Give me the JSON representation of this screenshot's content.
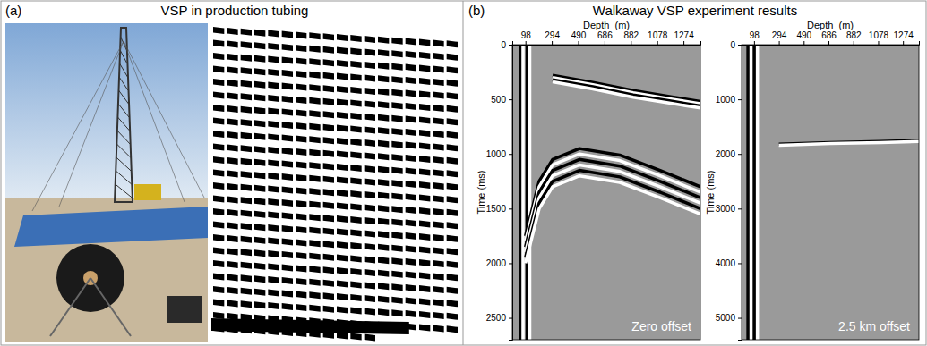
{
  "panels": [
    {
      "letter": "(a)",
      "title": "VSP in production tubing"
    },
    {
      "letter": "(b)",
      "title": "Walkaway VSP experiment results"
    }
  ],
  "chart_data": [
    {
      "type": "line",
      "title": "Zero offset",
      "x_label": "Depth  (m)",
      "y_label": "Time (ms)",
      "xlim": [
        0,
        1400
      ],
      "xticks": [
        98,
        294,
        490,
        686,
        882,
        1078,
        1274
      ],
      "ylim": [
        0,
        2700
      ],
      "yticks": [
        0,
        500,
        1000,
        1500,
        2000,
        2500
      ],
      "series": [
        {
          "color": "#000000",
          "x": [
            60,
            60
          ],
          "values": [
            0,
            2700
          ]
        },
        {
          "color": "#ffffff",
          "x": [
            80,
            80
          ],
          "values": [
            0,
            2700
          ]
        },
        {
          "color": "#000000",
          "x": [
            110,
            110
          ],
          "values": [
            0,
            2700
          ]
        },
        {
          "color": "#ffffff",
          "x": [
            130,
            130
          ],
          "values": [
            0,
            2700
          ]
        },
        {
          "color": "#000000",
          "x": [
            300,
            600,
            900,
            1200,
            1400
          ],
          "values": [
            280,
            345,
            420,
            480,
            520
          ]
        },
        {
          "color": "#ffffff",
          "x": [
            300,
            600,
            900,
            1200,
            1400
          ],
          "values": [
            300,
            365,
            440,
            500,
            540
          ]
        },
        {
          "color": "#000000",
          "x": [
            300,
            600,
            900,
            1200,
            1400
          ],
          "values": [
            320,
            385,
            460,
            520,
            560
          ]
        },
        {
          "color": "#ffffff",
          "x": [
            300,
            600,
            900,
            1200,
            1400
          ],
          "values": [
            340,
            405,
            480,
            540,
            580
          ]
        },
        {
          "color": "#000000",
          "x": [
            98,
            200,
            300,
            500,
            800,
            1100,
            1400
          ],
          "values": [
            1750,
            1250,
            1050,
            950,
            1010,
            1150,
            1300
          ]
        },
        {
          "color": "#ffffff",
          "x": [
            98,
            200,
            300,
            500,
            800,
            1100,
            1400
          ],
          "values": [
            1800,
            1300,
            1100,
            1000,
            1060,
            1200,
            1350
          ]
        },
        {
          "color": "#000000",
          "x": [
            98,
            200,
            300,
            500,
            800,
            1100,
            1400
          ],
          "values": [
            1850,
            1350,
            1150,
            1050,
            1110,
            1250,
            1400
          ]
        },
        {
          "color": "#ffffff",
          "x": [
            98,
            200,
            300,
            500,
            800,
            1100,
            1400
          ],
          "values": [
            1900,
            1400,
            1200,
            1100,
            1160,
            1300,
            1450
          ]
        },
        {
          "color": "#000000",
          "x": [
            98,
            200,
            300,
            500,
            800,
            1100,
            1400
          ],
          "values": [
            1950,
            1450,
            1250,
            1150,
            1210,
            1350,
            1500
          ]
        },
        {
          "color": "#ffffff",
          "x": [
            98,
            200,
            300,
            500,
            800,
            1100,
            1400
          ],
          "values": [
            2000,
            1500,
            1300,
            1200,
            1260,
            1400,
            1550
          ]
        }
      ]
    },
    {
      "type": "line",
      "title": "2.5 km offset",
      "x_label": "Depth  (m)",
      "y_label": "Time (ms)",
      "xlim": [
        0,
        1400
      ],
      "xticks": [
        98,
        294,
        490,
        686,
        882,
        1078,
        1274
      ],
      "ylim": [
        0,
        5400
      ],
      "yticks": [
        0,
        1000,
        2000,
        3000,
        4000,
        5000
      ],
      "series": [
        {
          "color": "#000000",
          "x": [
            50,
            50
          ],
          "values": [
            0,
            5400
          ]
        },
        {
          "color": "#ffffff",
          "x": [
            75,
            75
          ],
          "values": [
            0,
            5400
          ]
        },
        {
          "color": "#000000",
          "x": [
            100,
            100
          ],
          "values": [
            0,
            5400
          ]
        },
        {
          "color": "#ffffff",
          "x": [
            125,
            125
          ],
          "values": [
            0,
            5400
          ]
        },
        {
          "color": "#000000",
          "x": [
            294,
            700,
            1100,
            1400
          ],
          "values": [
            1820,
            1790,
            1770,
            1750
          ]
        },
        {
          "color": "#ffffff",
          "x": [
            294,
            700,
            1100,
            1400
          ],
          "values": [
            1840,
            1810,
            1790,
            1770
          ]
        }
      ]
    }
  ]
}
